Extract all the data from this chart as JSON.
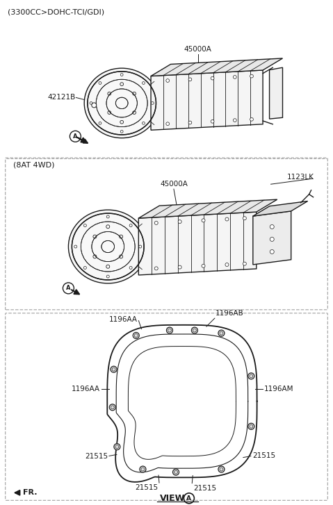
{
  "bg_color": "#ffffff",
  "line_color": "#1a1a1a",
  "dashed_color": "#aaaaaa",
  "title_top": "(3300CC>DOHC-TCI/GDI)",
  "title_mid": "(8AT 4WD)",
  "label_45000A_top": "45000A",
  "label_42121B": "42121B",
  "label_45000A_mid": "45000A",
  "label_1123LK": "1123LK",
  "label_1196AB": "1196AB",
  "label_1196AA_1": "1196AA",
  "label_1196AA_2": "1196AA",
  "label_1196AM": "1196AM",
  "label_21515_1": "21515",
  "label_21515_2": "21515",
  "label_21515_3": "21515",
  "label_21515_4": "21515",
  "label_FR": "FR.",
  "label_VIEW": "VIEW",
  "figsize": [
    4.79,
    7.27
  ],
  "dpi": 100
}
